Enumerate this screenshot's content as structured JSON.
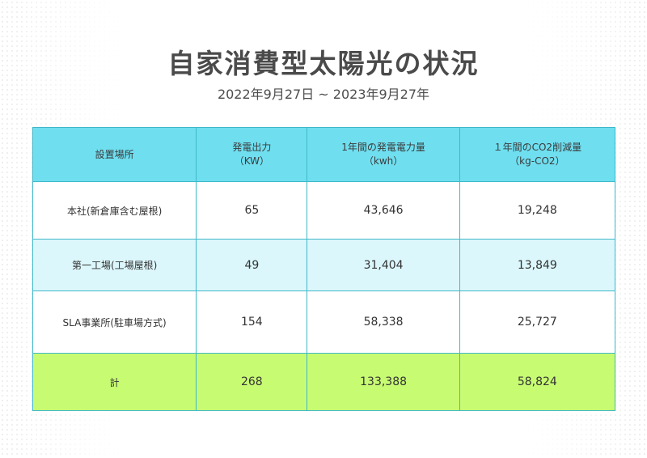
{
  "title": "自家消費型太陽光の状況",
  "period": "2022年9月27日 ~ 2023年9月27年",
  "table": {
    "headers": [
      {
        "line1": "設置場所",
        "line2": ""
      },
      {
        "line1": "発電出力",
        "line2": "（KW）"
      },
      {
        "line1": "1年間の発電電力量",
        "line2": "（kwh）"
      },
      {
        "line1": "１年間のCO2削減量",
        "line2": "（kg-CO2）"
      }
    ],
    "rows": [
      {
        "location": "本社(新倉庫含む屋根)",
        "capacity": "65",
        "generation": "43,646",
        "co2": "19,248"
      },
      {
        "location": "第一工場(工場屋根)",
        "capacity": "49",
        "generation": "31,404",
        "co2": "13,849"
      },
      {
        "location": "SLA事業所(駐車場方式)",
        "capacity": "154",
        "generation": "58,338",
        "co2": "25,727"
      }
    ],
    "total": {
      "label": "計",
      "capacity": "268",
      "generation": "133,388",
      "co2": "58,824"
    }
  },
  "colors": {
    "header_bg": "#6fdff0",
    "alt_row_bg": "#dcf7fc",
    "total_bg": "#c7fb72",
    "border": "#3fb8c9"
  }
}
